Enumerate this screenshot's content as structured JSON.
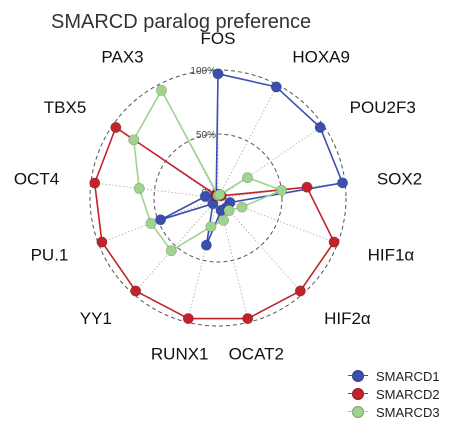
{
  "chart_data": {
    "type": "radar",
    "title": "SMARCD paralog preference",
    "categories": [
      "FOS",
      "HOXA9",
      "POU2F3",
      "SOX2",
      "HIF1α",
      "HIF2α",
      "OCAT2",
      "RUNX1",
      "YY1",
      "PU.1",
      "OCT4",
      "TBX5",
      "PAX3"
    ],
    "ring_labels": [
      "0%",
      "50%",
      "100%"
    ],
    "rlim": [
      0,
      100
    ],
    "series": [
      {
        "name": "SMARCD1",
        "color": "#3b4fb0",
        "values": [
          97,
          98,
          97,
          98,
          10,
          10,
          10,
          38,
          6,
          48,
          10,
          3,
          3
        ]
      },
      {
        "name": "SMARCD2",
        "color": "#c0232a",
        "values": [
          3,
          3,
          3,
          70,
          97,
          97,
          97,
          97,
          97,
          97,
          97,
          97,
          2
        ]
      },
      {
        "name": "SMARCD3",
        "color": "#9fd48f",
        "values": [
          2,
          3,
          28,
          50,
          20,
          13,
          18,
          23,
          55,
          56,
          62,
          80,
          95
        ]
      }
    ],
    "legend_position": "bottom-right",
    "grid": true
  }
}
